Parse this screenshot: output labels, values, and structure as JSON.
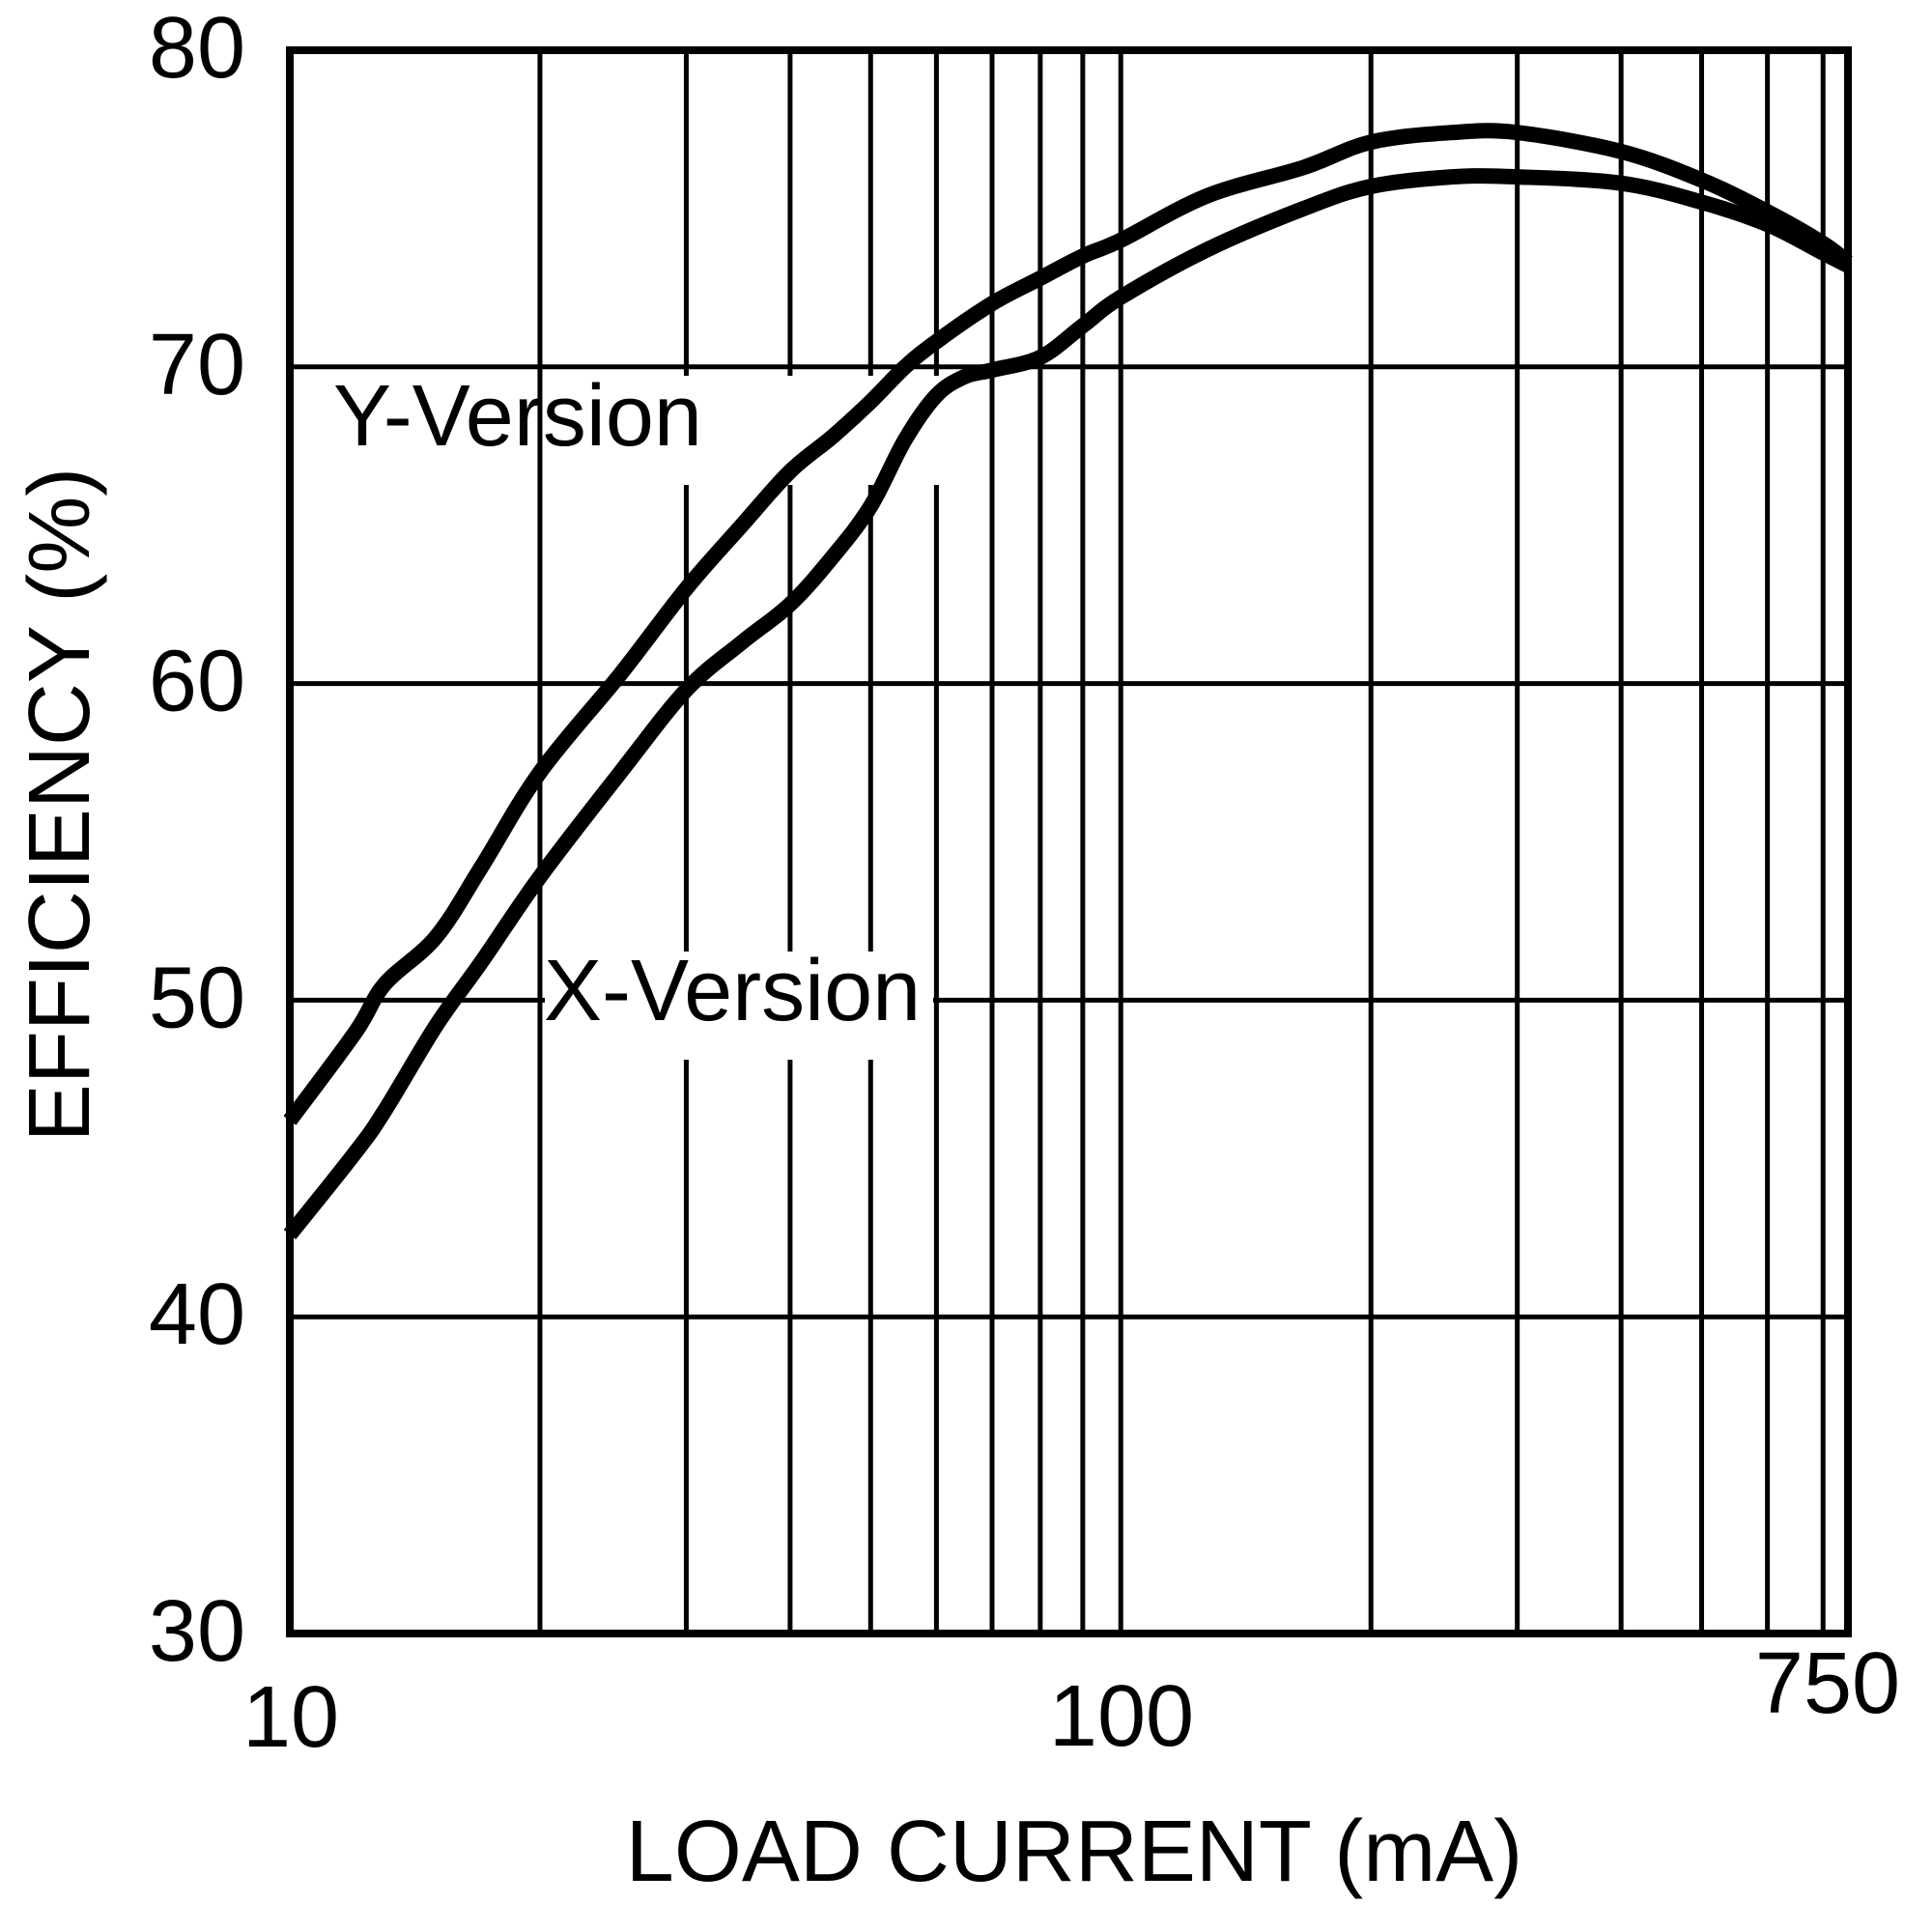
{
  "chart_data": {
    "type": "line",
    "title": "",
    "xlabel": "LOAD CURRENT (mA)",
    "ylabel": "EFFICIENCY (%)",
    "x_scale": "log",
    "xlim": [
      10,
      750
    ],
    "ylim": [
      30,
      80
    ],
    "grid": true,
    "legend": "inline labels",
    "x_tick_labels": [
      "10",
      "100",
      "750"
    ],
    "x_tick_values": [
      10,
      100,
      750
    ],
    "x_minor_grid": [
      20,
      30,
      40,
      50,
      60,
      70,
      80,
      90,
      200,
      300,
      400,
      500,
      600,
      700
    ],
    "y_tick_labels": [
      "30",
      "40",
      "50",
      "60",
      "70",
      "80"
    ],
    "y_tick_values": [
      30,
      40,
      50,
      60,
      70,
      80
    ],
    "color": "#000000",
    "series": [
      {
        "name": "Y-Version",
        "points": [
          [
            10,
            46.2
          ],
          [
            12,
            49.0
          ],
          [
            13,
            50.5
          ],
          [
            15,
            52.0
          ],
          [
            17,
            54.2
          ],
          [
            20,
            57.2
          ],
          [
            25,
            60.3
          ],
          [
            30,
            63.0
          ],
          [
            35,
            65.0
          ],
          [
            40,
            66.7
          ],
          [
            45,
            67.8
          ],
          [
            50,
            68.9
          ],
          [
            55,
            70.0
          ],
          [
            60,
            70.8
          ],
          [
            70,
            72.0
          ],
          [
            80,
            72.8
          ],
          [
            90,
            73.5
          ],
          [
            100,
            74.0
          ],
          [
            127,
            75.4
          ],
          [
            166,
            76.3
          ],
          [
            200,
            77.1
          ],
          [
            250,
            77.4
          ],
          [
            300,
            77.4
          ],
          [
            400,
            76.8
          ],
          [
            500,
            75.9
          ],
          [
            600,
            74.9
          ],
          [
            700,
            73.9
          ],
          [
            750,
            73.3
          ]
        ],
        "label_pos": [
          345,
          461
        ]
      },
      {
        "name": "X-Version",
        "points": [
          [
            10,
            42.6
          ],
          [
            12,
            45.2
          ],
          [
            13,
            46.5
          ],
          [
            15,
            49.2
          ],
          [
            17,
            51.2
          ],
          [
            20,
            53.9
          ],
          [
            25,
            57.2
          ],
          [
            30,
            59.8
          ],
          [
            35,
            61.3
          ],
          [
            40,
            62.5
          ],
          [
            45,
            64.0
          ],
          [
            50,
            65.6
          ],
          [
            55,
            67.7
          ],
          [
            60,
            69.1
          ],
          [
            65,
            69.7
          ],
          [
            70,
            69.9
          ],
          [
            80,
            70.3
          ],
          [
            90,
            71.3
          ],
          [
            100,
            72.2
          ],
          [
            127,
            73.7
          ],
          [
            166,
            75.0
          ],
          [
            200,
            75.7
          ],
          [
            250,
            76.0
          ],
          [
            300,
            76.0
          ],
          [
            400,
            75.8
          ],
          [
            500,
            75.2
          ],
          [
            600,
            74.5
          ],
          [
            700,
            73.6
          ],
          [
            750,
            73.2
          ]
        ],
        "label_pos": [
          563,
          1056
        ]
      }
    ]
  }
}
